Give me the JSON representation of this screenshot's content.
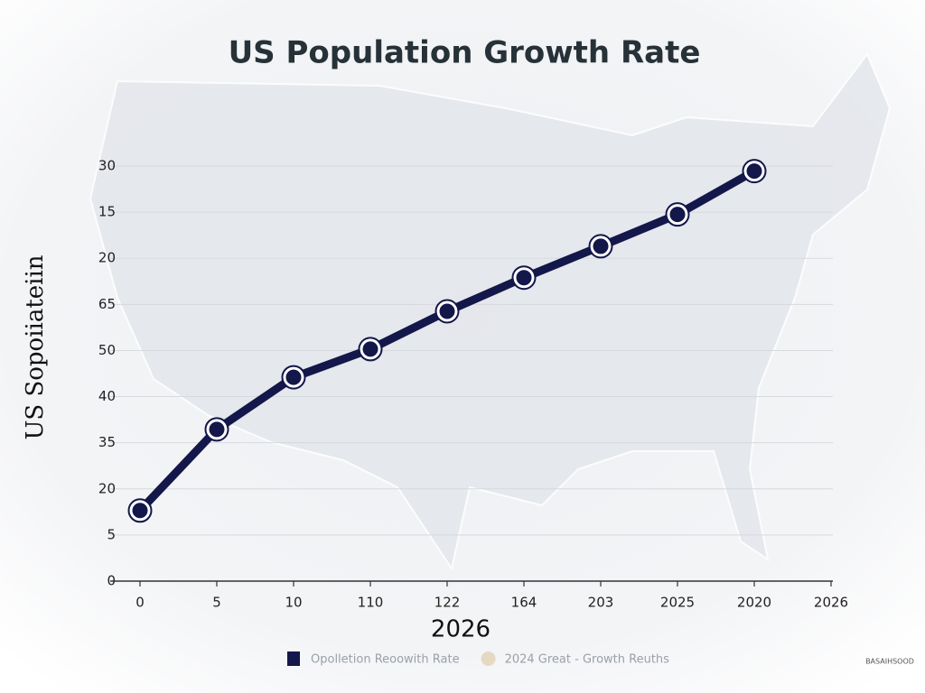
{
  "chart_data": {
    "type": "line",
    "title": "US Population Growth Rate",
    "x_label": "2026",
    "y_label": "US Sopoiiateiin",
    "categories": [
      "0",
      "5",
      "10",
      "110",
      "122",
      "164",
      "203",
      "2025",
      "2020",
      "2026"
    ],
    "series": [
      {
        "name": "Opolletion Reoowith Rate",
        "color": "#14174a",
        "values": [
          1.53,
          3.29,
          4.42,
          5.03,
          5.85,
          6.58,
          7.26,
          7.95,
          8.89,
          null
        ]
      },
      {
        "name": "2024 Great - Growth Reuths",
        "color": "#e6d9c2",
        "values": [
          null,
          null,
          null,
          null,
          null,
          null,
          null,
          null,
          null,
          null
        ]
      }
    ],
    "ylim": [
      0,
      9
    ],
    "yticks": [
      {
        "value": 0,
        "label": "0"
      },
      {
        "value": 1,
        "label": "5"
      },
      {
        "value": 2,
        "label": "20"
      },
      {
        "value": 3,
        "label": "35"
      },
      {
        "value": 4,
        "label": "40"
      },
      {
        "value": 5,
        "label": "50"
      },
      {
        "value": 6,
        "label": "65"
      },
      {
        "value": 7,
        "label": "20"
      },
      {
        "value": 8,
        "label": "15"
      },
      {
        "value": 9,
        "label": "30"
      }
    ],
    "grid": true,
    "watermark": "BASAIHSOOD"
  }
}
